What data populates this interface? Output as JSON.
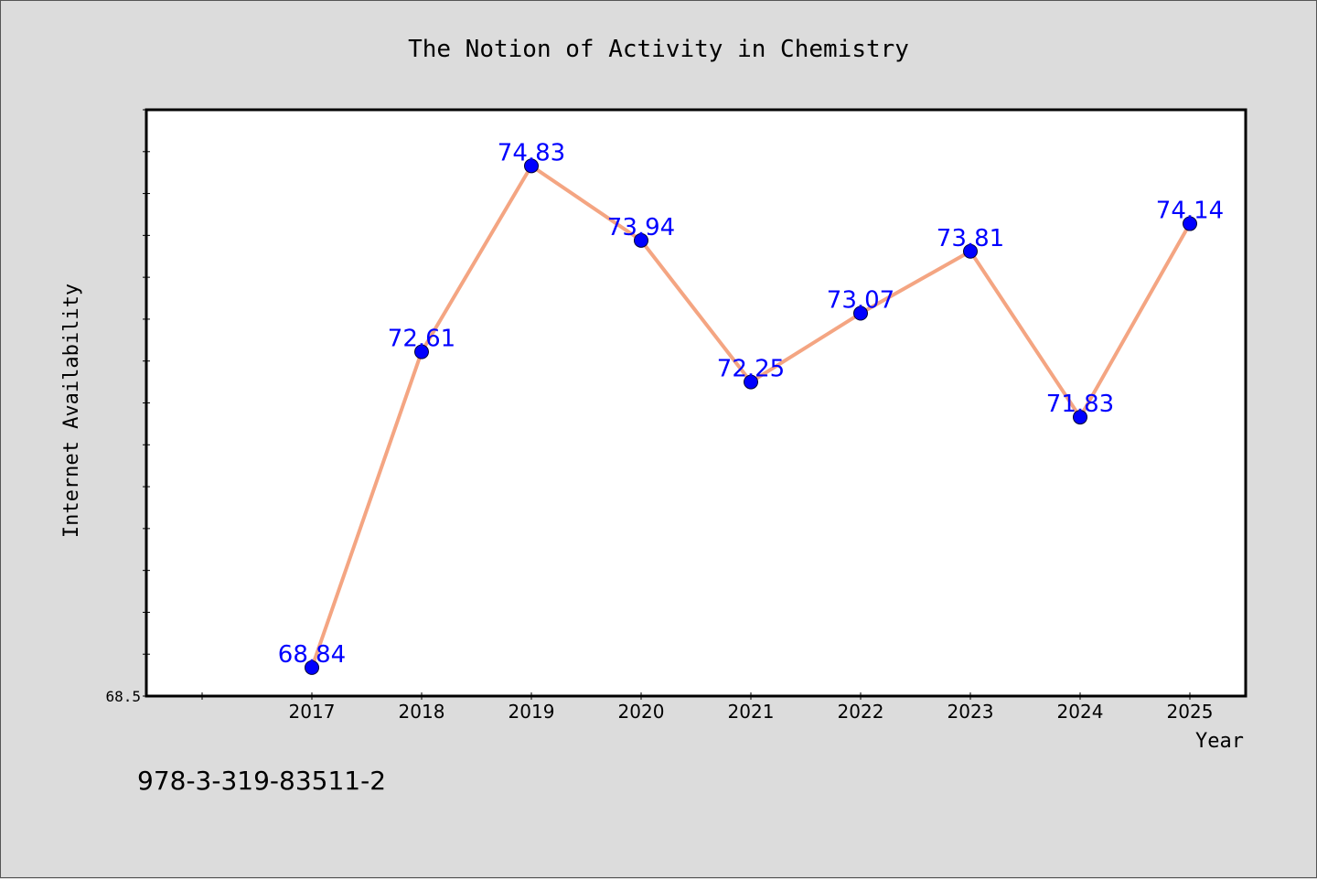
{
  "caption": "978-3-319-83511-2",
  "colors": {
    "background": "#dcdcdc",
    "plot_background": "#ffffff",
    "line": "#f4a582",
    "marker": "#0000ff",
    "label": "#0000ff",
    "axis": "#000000"
  },
  "chart_data": {
    "type": "line",
    "title": "The Notion of Activity in Chemistry",
    "xlabel": "Year",
    "ylabel": "Internet Availability",
    "x": [
      "2017",
      "2018",
      "2019",
      "2020",
      "2021",
      "2022",
      "2023",
      "2024",
      "2025"
    ],
    "series": [
      {
        "values": [
          68.84,
          72.61,
          74.83,
          73.94,
          72.25,
          73.07,
          73.81,
          71.83,
          74.14
        ],
        "labels": [
          "68.84",
          "72.61",
          "74.83",
          "73.94",
          "72.25",
          "73.07",
          "73.81",
          "71.83",
          "74.14"
        ]
      }
    ],
    "ylim": [
      68.5,
      75.5
    ],
    "yticks_labeled": [
      "68.5"
    ],
    "grid": false,
    "legend": "none"
  }
}
